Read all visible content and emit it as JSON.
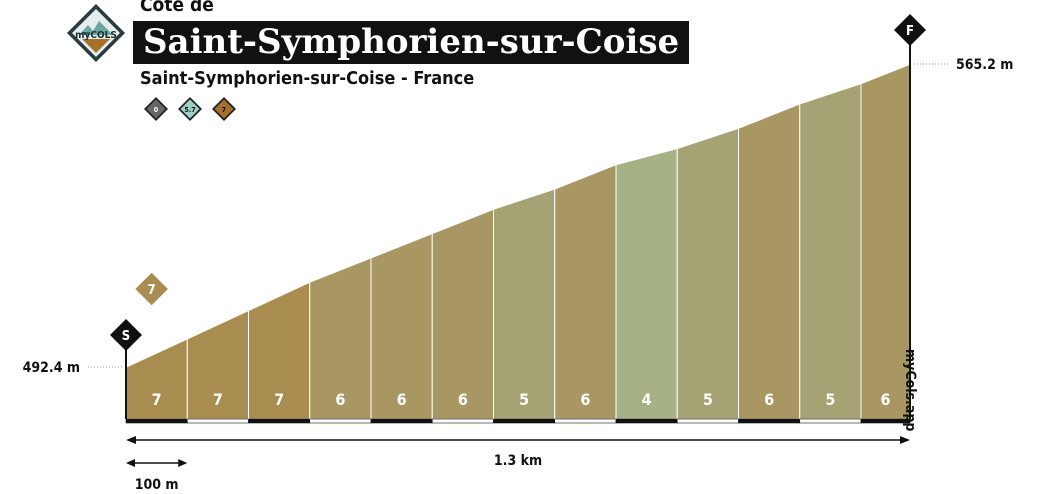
{
  "header": {
    "subtitle_top": "Cote de",
    "title": "Saint-Symphorien-sur-Coise",
    "location": "Saint-Symphorien-sur-Coise - France",
    "logo_text": "myCOLS",
    "logo_small": "my",
    "difficulty_badges": [
      {
        "label": "0",
        "color": "#666666"
      },
      {
        "label": "5.7",
        "color": "#9ecfc7"
      },
      {
        "label": "7",
        "color": "#a66f2a"
      }
    ]
  },
  "watermark": "myCols.app",
  "chart_data": {
    "type": "area",
    "title": "Saint-Symphorien-sur-Coise",
    "xlabel": "1.3 km",
    "scale_label": "100 m",
    "x_unit": "km",
    "y_unit": "m",
    "start_label": "S",
    "finish_label": "F",
    "start_elevation_label": "492.4 m",
    "finish_elevation_label": "565.2 m",
    "start_elevation": 492.4,
    "finish_elevation": 565.2,
    "total_distance": 1.28,
    "segment_length": 0.1,
    "segments": [
      {
        "start_km": 0.0,
        "end_km": 0.1,
        "gradient": 7
      },
      {
        "start_km": 0.1,
        "end_km": 0.2,
        "gradient": 7
      },
      {
        "start_km": 0.2,
        "end_km": 0.3,
        "gradient": 7
      },
      {
        "start_km": 0.3,
        "end_km": 0.4,
        "gradient": 6
      },
      {
        "start_km": 0.4,
        "end_km": 0.5,
        "gradient": 6
      },
      {
        "start_km": 0.5,
        "end_km": 0.6,
        "gradient": 6
      },
      {
        "start_km": 0.6,
        "end_km": 0.7,
        "gradient": 5
      },
      {
        "start_km": 0.7,
        "end_km": 0.8,
        "gradient": 6
      },
      {
        "start_km": 0.8,
        "end_km": 0.9,
        "gradient": 4
      },
      {
        "start_km": 0.9,
        "end_km": 1.0,
        "gradient": 5
      },
      {
        "start_km": 1.0,
        "end_km": 1.1,
        "gradient": 6
      },
      {
        "start_km": 1.1,
        "end_km": 1.2,
        "gradient": 5
      },
      {
        "start_km": 1.2,
        "end_km": 1.28,
        "gradient": 6
      }
    ],
    "max_gradient_marker": {
      "km": 0.05,
      "label": "7"
    },
    "colors": {
      "7": "#a98c4f",
      "6": "#a89762",
      "5": "#a5a273",
      "4": "#a6b186"
    }
  }
}
